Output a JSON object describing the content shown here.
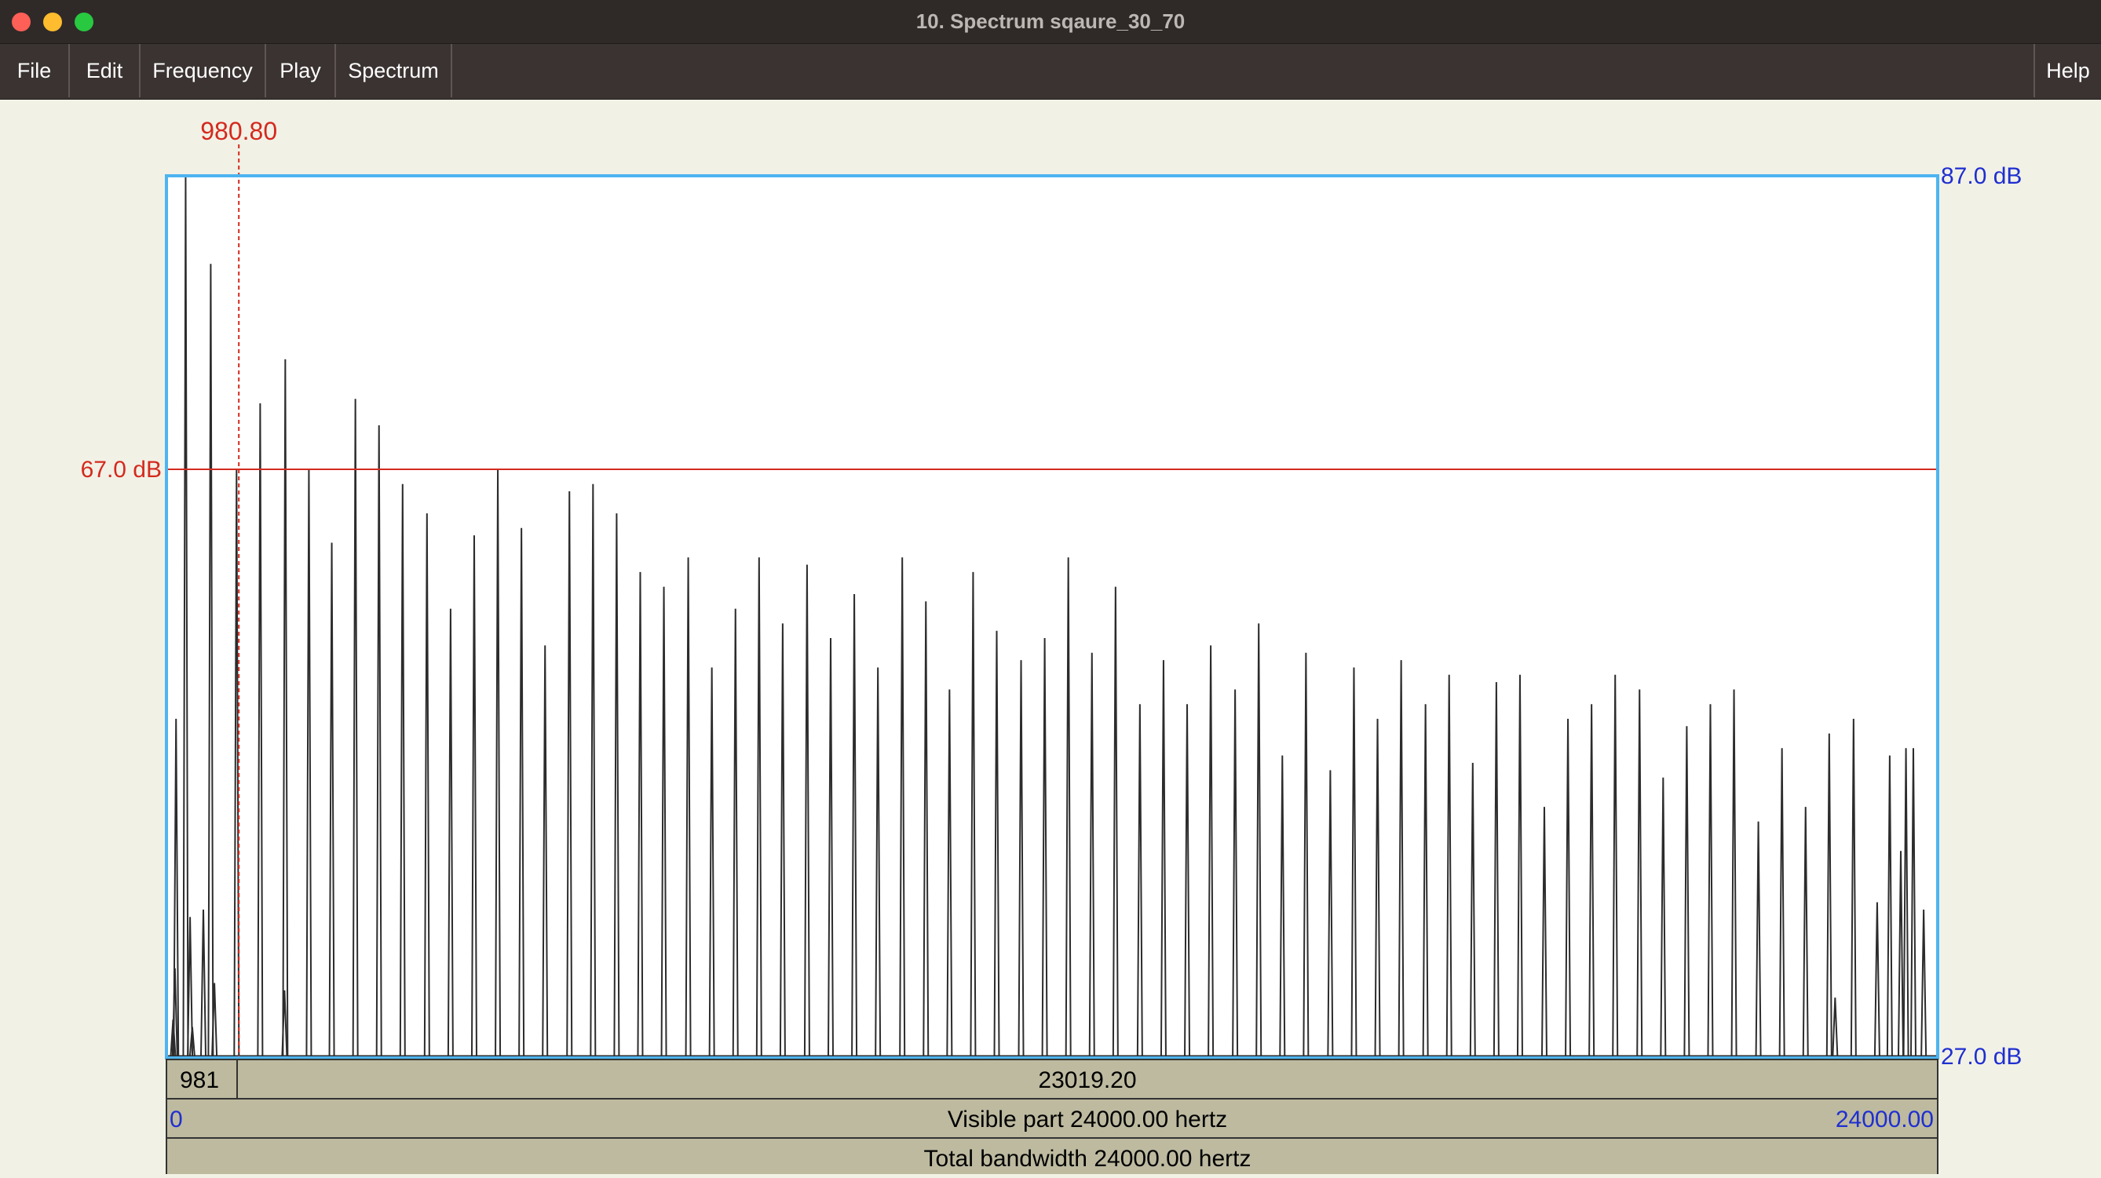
{
  "window": {
    "title": "10. Spectrum sqaure_30_70"
  },
  "menu": {
    "file": "File",
    "edit": "Edit",
    "frequency": "Frequency",
    "play": "Play",
    "spectrum": "Spectrum",
    "help": "Help"
  },
  "cursor": {
    "frequency_label": "980.80",
    "frequency_hz": 980.8,
    "level_label": "67.0 dB",
    "level_db": 67.0
  },
  "axis": {
    "top_label": "87.0 dB",
    "bottom_label": "27.0 dB",
    "db_max": 87.0,
    "db_min": 27.0,
    "f_min": 0,
    "f_max": 24000
  },
  "bars": {
    "left_value": "981",
    "right_value": "23019.20",
    "visible_left": "0",
    "visible_label": "Visible part 24000.00 hertz",
    "visible_right": "24000.00",
    "total_label": "Total bandwidth 24000.00 hertz"
  },
  "colors": {
    "frame": "#4db4f0",
    "cursor": "#d42a1e",
    "axis_label": "#1f2fd0",
    "spectrum": "#2c2c2c",
    "bar_fill": "#bdbaa0"
  },
  "chart_data": {
    "type": "line",
    "xlabel": "",
    "ylabel": "",
    "xlim": [
      0,
      24000
    ],
    "ylim": [
      27,
      87
    ],
    "peaks": {
      "freq_hz": [
        90,
        115,
        130,
        260,
        320,
        350,
        500,
        600,
        650,
        950,
        1270,
        1600,
        1610,
        1930,
        2240,
        2560,
        2880,
        3200,
        3530,
        3850,
        4170,
        4490,
        4810,
        5130,
        5460,
        5780,
        6100,
        6420,
        6740,
        7070,
        7390,
        7710,
        8030,
        8350,
        8680,
        9000,
        9320,
        9640,
        9970,
        10290,
        10610,
        10930,
        11250,
        11580,
        11900,
        12220,
        12540,
        12860,
        13190,
        13510,
        13830,
        14150,
        14480,
        14800,
        15120,
        15440,
        15770,
        16090,
        16410,
        16730,
        17060,
        17380,
        17700,
        18020,
        18340,
        18670,
        18990,
        19310,
        19630,
        19960,
        20280,
        20600,
        20920,
        21240,
        21570,
        21890,
        22210,
        22530,
        22610,
        22860,
        23180,
        23350,
        23500,
        23570,
        23670,
        23810
      ],
      "level_db": [
        29.5,
        33,
        50,
        87,
        36.5,
        29,
        37,
        81,
        32,
        67,
        71.5,
        31.5,
        74.5,
        67,
        62,
        71.8,
        70,
        66,
        64,
        57.5,
        62.5,
        67,
        63,
        55,
        65.5,
        66,
        64,
        60,
        59,
        61,
        53.5,
        57.5,
        61,
        56.5,
        60.5,
        55.5,
        58.5,
        53.5,
        61,
        58,
        52,
        60,
        56,
        54,
        55.5,
        61,
        54.5,
        59,
        51,
        54,
        51,
        55,
        52,
        56.5,
        47.5,
        54.5,
        46.5,
        53.5,
        50,
        54,
        51,
        53,
        47,
        52.5,
        53,
        44,
        50,
        51,
        53,
        52,
        46,
        49.5,
        51,
        52,
        43,
        48,
        44,
        49,
        31,
        50,
        37.5,
        47.5,
        41,
        48,
        48,
        37
      ]
    }
  }
}
